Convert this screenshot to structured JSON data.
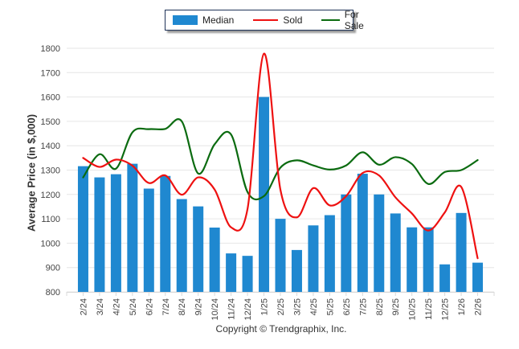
{
  "legend": {
    "median_label": "Median",
    "sold_label": "Sold",
    "for_sale_label": "For Sale"
  },
  "footer": {
    "copyright": "Copyright © Trendgraphix, Inc."
  },
  "colors": {
    "median": "#1f88d0",
    "sold": "#ee1111",
    "for_sale": "#0b6b10",
    "grid": "#e6e6e6"
  },
  "chart_data": {
    "type": "bar",
    "title": "",
    "xlabel": "",
    "ylabel": "Average Price (in $,000)",
    "ylim": [
      800,
      1800
    ],
    "yticks": [
      800,
      900,
      1000,
      1100,
      1200,
      1300,
      1400,
      1500,
      1600,
      1700,
      1800
    ],
    "grid": true,
    "legend_position": "top-center",
    "categories": [
      "2/24",
      "3/24",
      "4/24",
      "5/24",
      "6/24",
      "7/24",
      "8/24",
      "9/24",
      "10/24",
      "11/24",
      "12/24",
      "1/25",
      "2/25",
      "3/25",
      "4/25",
      "5/25",
      "6/25",
      "7/25",
      "8/25",
      "9/25",
      "10/25",
      "11/25",
      "12/25",
      "1/26",
      "2/26"
    ],
    "series": [
      {
        "name": "Median",
        "type": "bar",
        "values": [
          1316,
          1270,
          1283,
          1326,
          1224,
          1276,
          1181,
          1151,
          1064,
          958,
          948,
          1600,
          1100,
          972,
          1073,
          1115,
          1200,
          1285,
          1200,
          1122,
          1065,
          1065,
          913,
          1124,
          920
        ]
      },
      {
        "name": "Sold",
        "type": "line",
        "values": [
          1350,
          1313,
          1343,
          1318,
          1247,
          1278,
          1199,
          1270,
          1220,
          1065,
          1140,
          1778,
          1220,
          1106,
          1226,
          1155,
          1193,
          1288,
          1278,
          1188,
          1122,
          1052,
          1126,
          1231,
          938
        ]
      },
      {
        "name": "For Sale",
        "type": "line",
        "values": [
          1270,
          1365,
          1306,
          1455,
          1468,
          1469,
          1500,
          1286,
          1406,
          1446,
          1210,
          1193,
          1310,
          1340,
          1319,
          1302,
          1319,
          1373,
          1322,
          1353,
          1325,
          1243,
          1292,
          1300,
          1341
        ]
      }
    ]
  }
}
